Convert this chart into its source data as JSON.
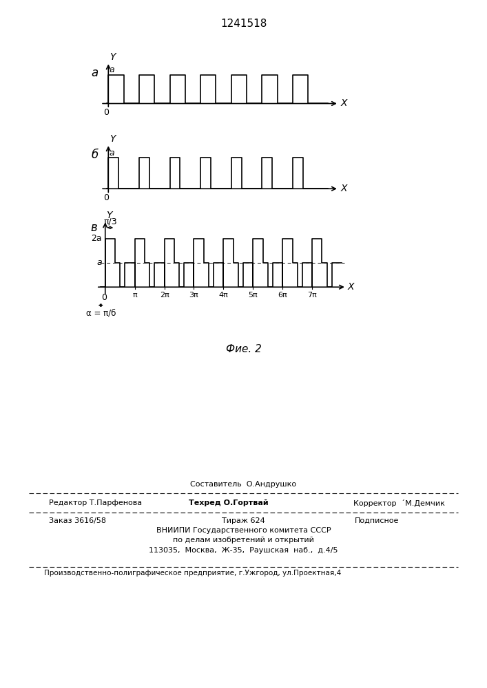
{
  "title": "1241518",
  "fig_caption": "Фие. 2",
  "background_color": "#ffffff",
  "line_color": "#000000",
  "subplot_label_a": "a",
  "subplot_label_b": "б",
  "subplot_label_v": "в",
  "footer_sestavitel": "Составитель  О.Андрушко",
  "footer_redaktor": "Редактор Т.Парфенова",
  "footer_tehred": "Техред О.Гортвай",
  "footer_korrektor": "Корректор  ´М.Демчик",
  "footer_zakaz": "Заказ 3616/58",
  "footer_tirazh": "Тираж 624",
  "footer_podpisnoe": "Подписное",
  "footer_vniip1": "ВНИИПИ Государственного комитета СССР",
  "footer_vniip2": "по делам изобретений и открытий",
  "footer_address": "113035,  Москва,  Ж-35,  Раушская  наб.,  д.4/5",
  "footer_predpr": "Производственно-полиграфическое предприятие, г.Ужгород, ул.Проектная,4"
}
